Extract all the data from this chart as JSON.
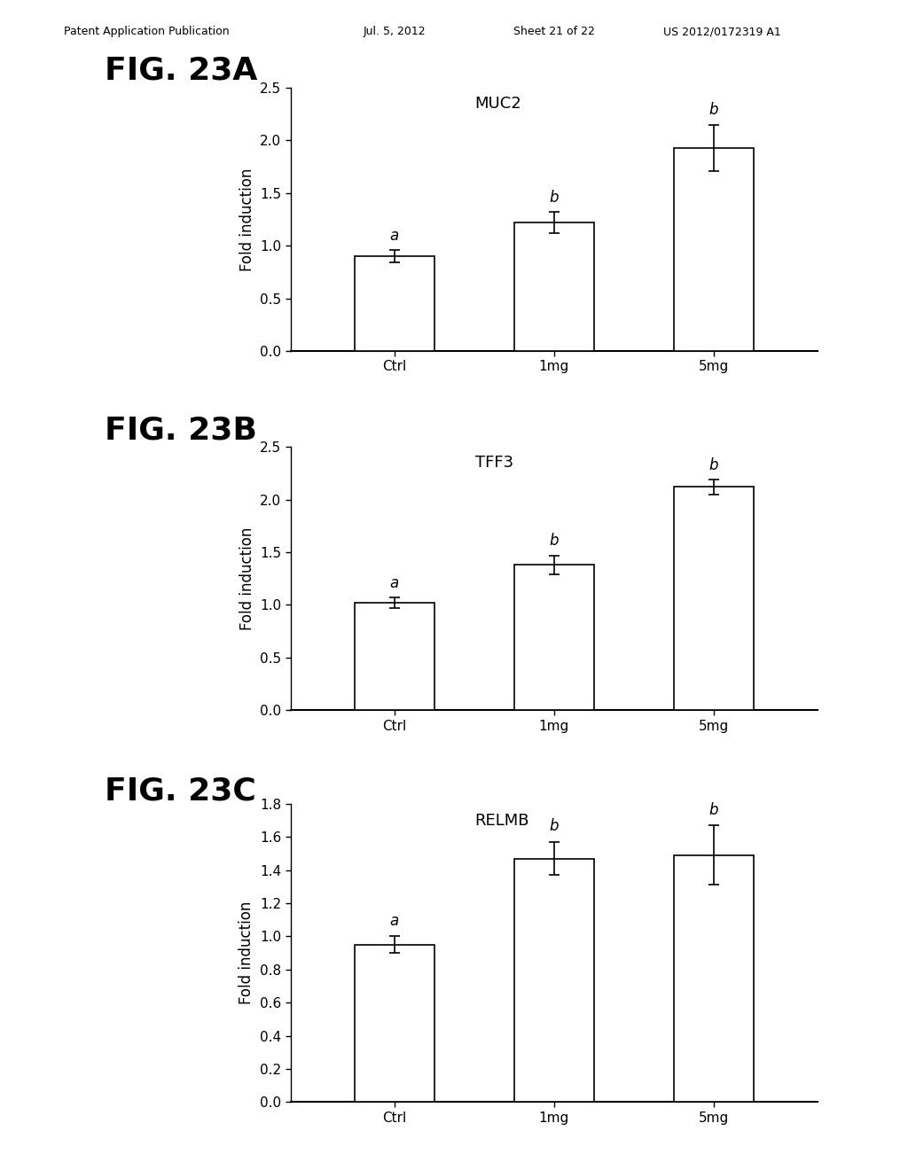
{
  "header_left": "Patent Application Publication",
  "header_mid": "Jul. 5, 2012",
  "header_sheet": "Sheet 21 of 22",
  "header_right": "US 2012/0172319 A1",
  "background_color": "#ffffff",
  "panels": [
    {
      "fig_label": "FIG. 23A",
      "gene": "MUC2",
      "categories": [
        "Ctrl",
        "1mg",
        "5mg"
      ],
      "values": [
        0.9,
        1.22,
        1.93
      ],
      "errors": [
        0.06,
        0.1,
        0.22
      ],
      "sig_labels": [
        "a",
        "b",
        "b"
      ],
      "ylim": [
        0,
        2.5
      ],
      "yticks": [
        0.0,
        0.5,
        1.0,
        1.5,
        2.0,
        2.5
      ]
    },
    {
      "fig_label": "FIG. 23B",
      "gene": "TFF3",
      "categories": [
        "Ctrl",
        "1mg",
        "5mg"
      ],
      "values": [
        1.02,
        1.38,
        2.12
      ],
      "errors": [
        0.05,
        0.09,
        0.07
      ],
      "sig_labels": [
        "a",
        "b",
        "b"
      ],
      "ylim": [
        0,
        2.5
      ],
      "yticks": [
        0.0,
        0.5,
        1.0,
        1.5,
        2.0,
        2.5
      ]
    },
    {
      "fig_label": "FIG. 23C",
      "gene": "RELMB",
      "categories": [
        "Ctrl",
        "1mg",
        "5mg"
      ],
      "values": [
        0.95,
        1.47,
        1.49
      ],
      "errors": [
        0.05,
        0.1,
        0.18
      ],
      "sig_labels": [
        "a",
        "b",
        "b"
      ],
      "ylim": [
        0,
        1.8
      ],
      "yticks": [
        0.0,
        0.2,
        0.4,
        0.6,
        0.8,
        1.0,
        1.2,
        1.4,
        1.6,
        1.8
      ]
    }
  ],
  "ylabel": "Fold induction",
  "bar_color": "#ffffff",
  "bar_edgecolor": "#000000",
  "error_color": "#000000",
  "bar_width": 0.5,
  "fig_label_fontsize": 26,
  "gene_label_fontsize": 13,
  "tick_fontsize": 11,
  "ylabel_fontsize": 12,
  "sig_fontsize": 12,
  "header_fontsize": 9
}
